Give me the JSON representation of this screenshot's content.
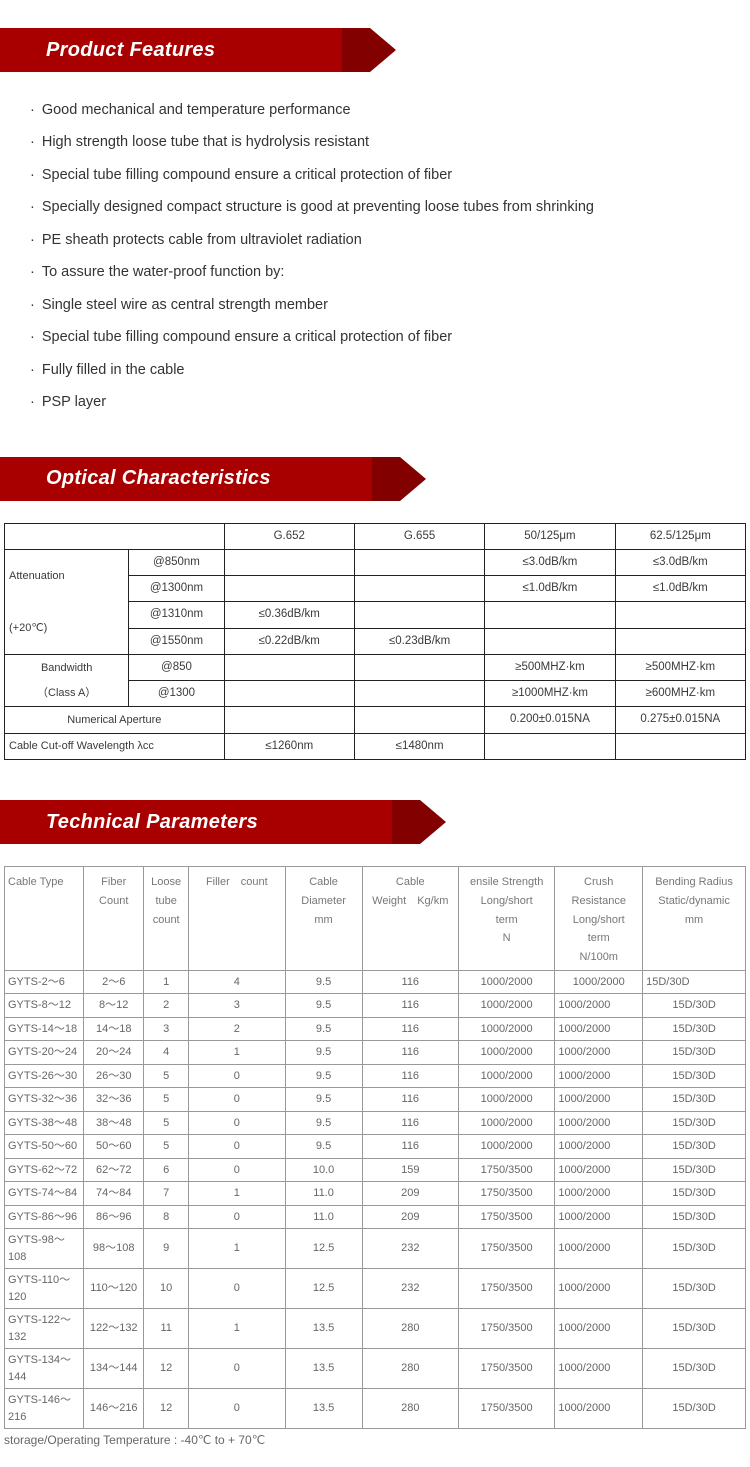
{
  "sections": {
    "features_title": "Product Features",
    "optical_title": "Optical Characteristics",
    "tech_title": "Technical Parameters"
  },
  "features": [
    "Good mechanical and temperature performance",
    "High strength loose tube that is hydrolysis resistant",
    "Special tube filling compound ensure a critical protection of fiber",
    "Specially designed compact structure is good at preventing loose tubes from shrinking",
    "PE sheath protects cable from ultraviolet radiation",
    "To assure the water-proof function by:",
    "Single steel wire as central strength member",
    "Special tube filling compound ensure a critical protection of fiber",
    "Fully filled in the cable",
    "PSP layer"
  ],
  "optical": {
    "headers": [
      "",
      "",
      "G.652",
      "G.655",
      "50/125μm",
      "62.5/125μm"
    ],
    "rows": [
      {
        "c0": "Attenuation",
        "c1": "@850nm",
        "c2": "",
        "c3": "",
        "c4": "≤3.0dB/km",
        "c5": "≤3.0dB/km"
      },
      {
        "c0": "",
        "c1": "@1300nm",
        "c2": "",
        "c3": "",
        "c4": "≤1.0dB/km",
        "c5": "≤1.0dB/km"
      },
      {
        "c0": "(+20℃)",
        "c1": "@1310nm",
        "c2": "≤0.36dB/km",
        "c3": "",
        "c4": "",
        "c5": ""
      },
      {
        "c0": "",
        "c1": "@1550nm",
        "c2": "≤0.22dB/km",
        "c3": "≤0.23dB/km",
        "c4": "",
        "c5": ""
      },
      {
        "c0": "Bandwidth",
        "c1": "@850",
        "c2": "",
        "c3": "",
        "c4": "≥500MHZ·km",
        "c5": "≥500MHZ·km",
        "c0_align": "center"
      },
      {
        "c0": "（Class A）",
        "c1": "@1300",
        "c2": "",
        "c3": "",
        "c4": "≥1000MHZ·km",
        "c5": "≥600MHZ·km",
        "c0_align": "center"
      },
      {
        "c0": "Numerical Aperture",
        "c1": "",
        "c2": "",
        "c3": "",
        "c4": "0.200±0.015NA",
        "c5": "0.275±0.015NA",
        "c0_align": "center"
      },
      {
        "c0": "Cable Cut-off Wavelength λcc",
        "c1": "",
        "c2": "≤1260nm",
        "c3": "≤1480nm",
        "c4": "",
        "c5": "",
        "span01": true
      }
    ]
  },
  "tech": {
    "headers": [
      "Cable Type",
      "Fiber Count",
      "Loose tube count",
      "Filler　count",
      "Cable Diameter mm",
      "Cable Weight　Kg/km",
      "ensile Strength Long/short term N",
      "Crush Resistance Long/short term N/100m",
      "Bending Radius Static/dynamic mm"
    ],
    "rows": [
      [
        "GYTS-2～6",
        "2～6",
        "1",
        "4",
        "9.5",
        "116",
        "1000/2000",
        "1000/2000",
        "15D/30D"
      ],
      [
        "GYTS-8～12",
        "8～12",
        "2",
        "3",
        "9.5",
        "116",
        "1000/2000",
        "1000/2000",
        "15D/30D"
      ],
      [
        "GYTS-14～18",
        "14～18",
        "3",
        "2",
        "9.5",
        "116",
        "1000/2000",
        "1000/2000",
        "15D/30D"
      ],
      [
        "GYTS-20～24",
        "20～24",
        "4",
        "1",
        "9.5",
        "116",
        "1000/2000",
        "1000/2000",
        "15D/30D"
      ],
      [
        "GYTS-26～30",
        "26～30",
        "5",
        "0",
        "9.5",
        "116",
        "1000/2000",
        "1000/2000",
        "15D/30D"
      ],
      [
        "GYTS-32～36",
        "32～36",
        "5",
        "0",
        "9.5",
        "116",
        "1000/2000",
        "1000/2000",
        "15D/30D"
      ],
      [
        "GYTS-38～48",
        "38～48",
        "5",
        "0",
        "9.5",
        "116",
        "1000/2000",
        "1000/2000",
        "15D/30D"
      ],
      [
        "GYTS-50～60",
        "50～60",
        "5",
        "0",
        "9.5",
        "116",
        "1000/2000",
        "1000/2000",
        "15D/30D"
      ],
      [
        "GYTS-62～72",
        "62～72",
        "6",
        "0",
        "10.0",
        "159",
        "1750/3500",
        "1000/2000",
        "15D/30D"
      ],
      [
        "GYTS-74～84",
        "74～84",
        "7",
        "1",
        "11.0",
        "209",
        "1750/3500",
        "1000/2000",
        "15D/30D"
      ],
      [
        "GYTS-86～96",
        "86～96",
        "8",
        "0",
        "11.0",
        "209",
        "1750/3500",
        "1000/2000",
        "15D/30D"
      ],
      [
        "GYTS-98～108",
        "98～108",
        "9",
        "1",
        "12.5",
        "232",
        "1750/3500",
        "1000/2000",
        "15D/30D"
      ],
      [
        "GYTS-110～120",
        "110～120",
        "10",
        "0",
        "12.5",
        "232",
        "1750/3500",
        "1000/2000",
        "15D/30D"
      ],
      [
        "GYTS-122～132",
        "122～132",
        "11",
        "1",
        "13.5",
        "280",
        "1750/3500",
        "1000/2000",
        "15D/30D"
      ],
      [
        "GYTS-134～144",
        "134～144",
        "12",
        "0",
        "13.5",
        "280",
        "1750/3500",
        "1000/2000",
        "15D/30D"
      ],
      [
        "GYTS-146～216",
        "146～216",
        "12",
        "0",
        "13.5",
        "280",
        "1750/3500",
        "1000/2000",
        "15D/30D"
      ]
    ],
    "firstRowLastLeft": true
  },
  "footnote": "storage/Operating Temperature : -40℃ to + 70℃",
  "colors": {
    "heading_bg": "#a80000",
    "heading_dark": "#830000",
    "text": "#333333",
    "table_border": "#222222",
    "tech_border": "#999999",
    "tech_text": "#666666"
  }
}
